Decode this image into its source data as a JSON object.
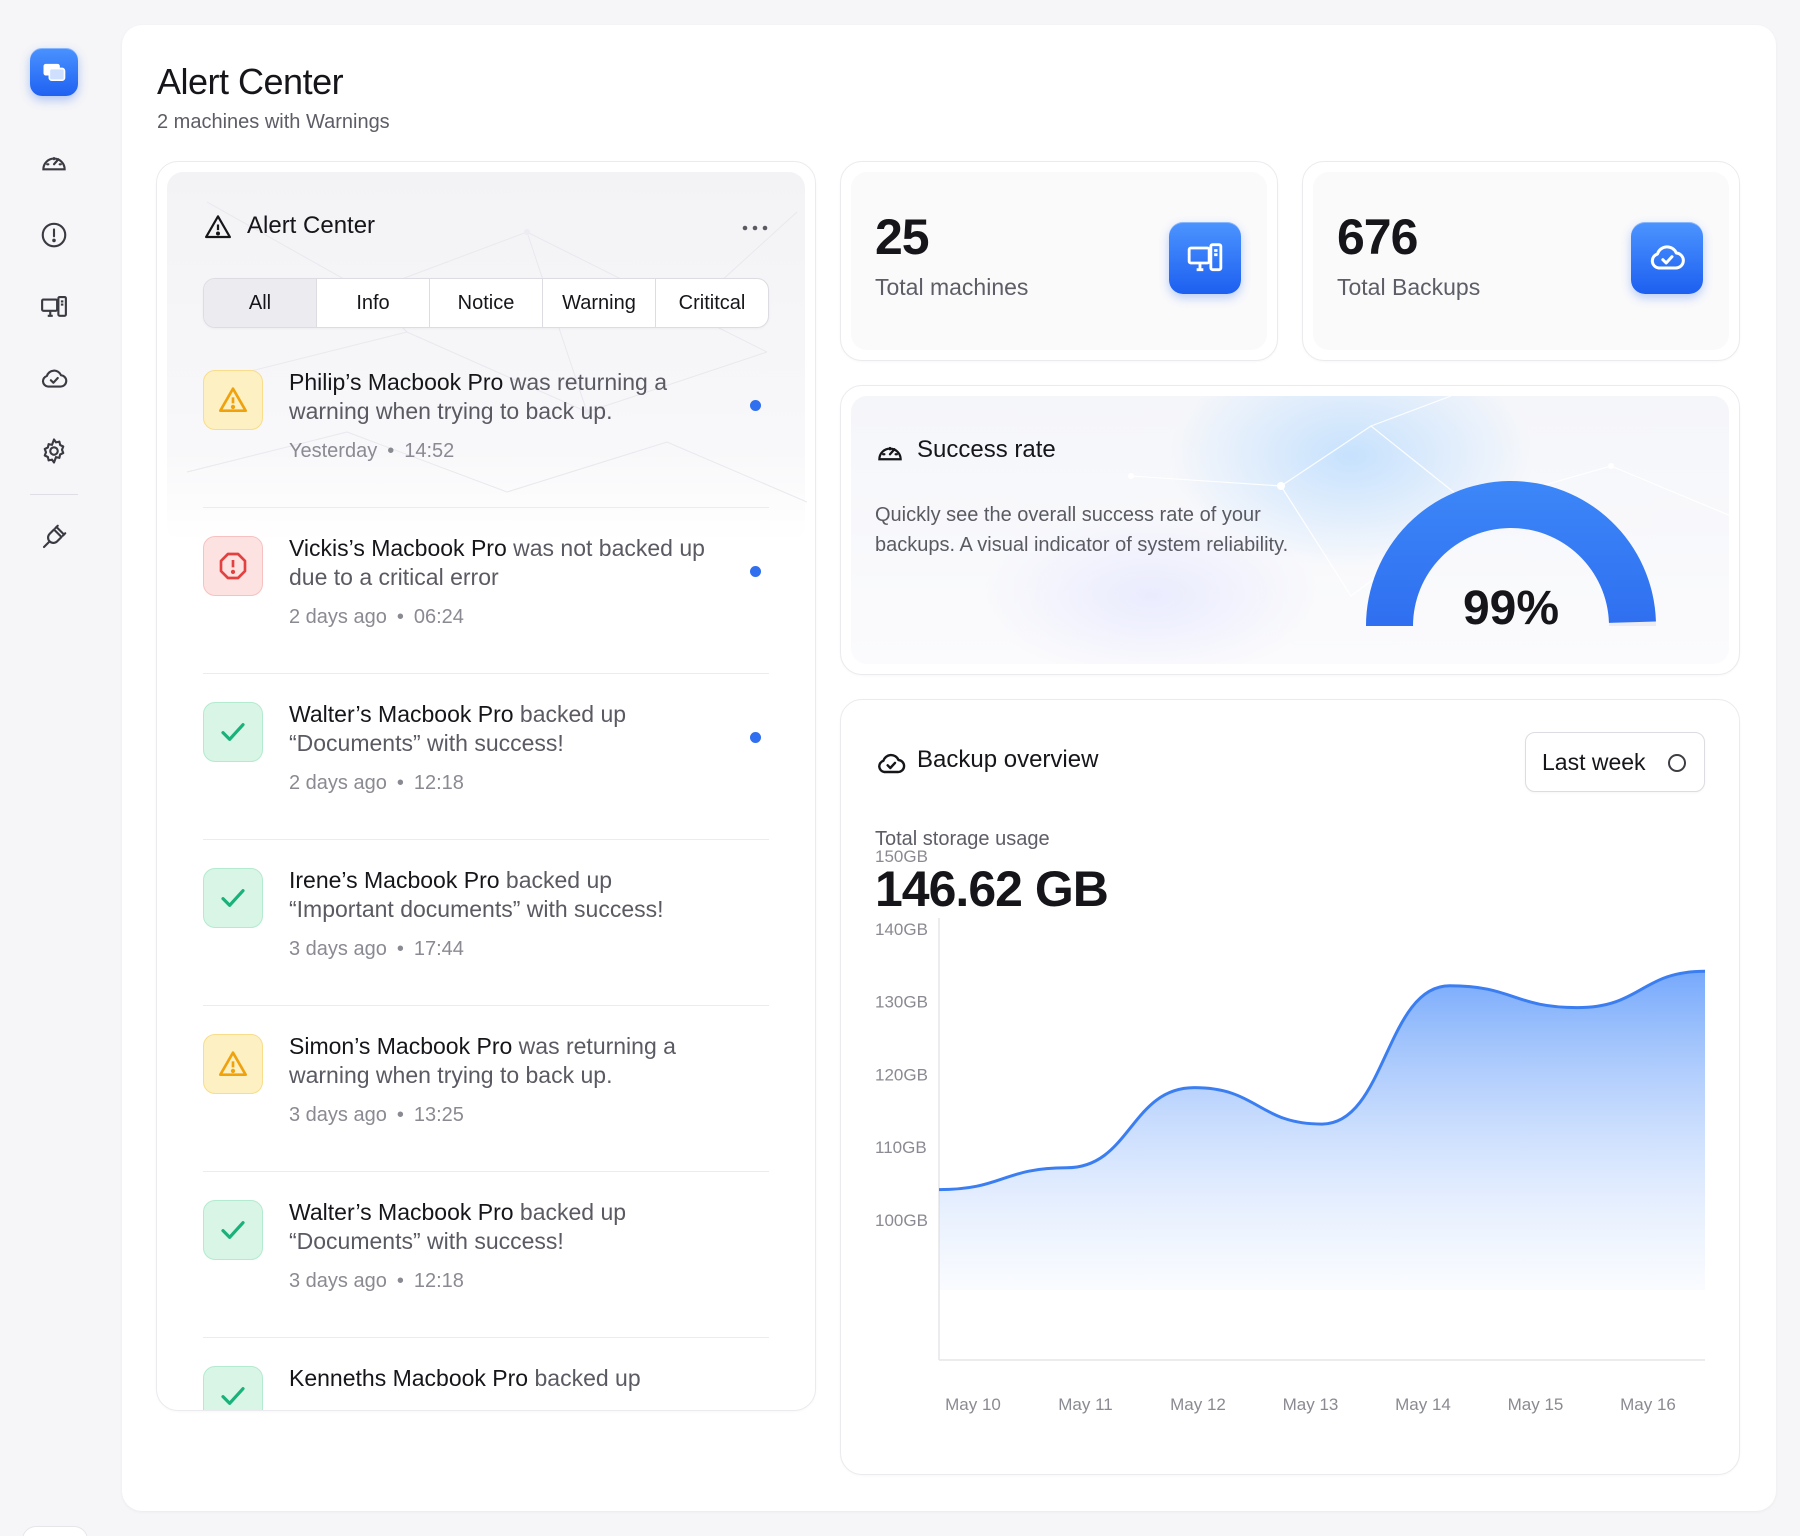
{
  "page": {
    "title": "Alert Center",
    "subtitle": "2 machines with Warnings"
  },
  "sidebar": {
    "items": [
      {
        "name": "dashboard",
        "icon": "gauge-icon"
      },
      {
        "name": "alerts",
        "icon": "alert-circle-icon"
      },
      {
        "name": "machines",
        "icon": "devices-icon"
      },
      {
        "name": "backups",
        "icon": "cloud-check-icon"
      },
      {
        "name": "settings",
        "icon": "gear-icon"
      },
      {
        "name": "integrations",
        "icon": "plug-icon"
      }
    ]
  },
  "alert_center": {
    "title": "Alert Center",
    "filters": [
      "All",
      "Info",
      "Notice",
      "Warning",
      "Crititcal"
    ],
    "selected_filter": "All",
    "items": [
      {
        "type": "warning",
        "who": "Philip’s Macbook Pro",
        "text": " was returning a warning when trying to back up.",
        "when": "Yesterday",
        "time": "14:52",
        "unread": true
      },
      {
        "type": "error",
        "who": "Vickis’s Macbook Pro",
        "text": " was not backed up due to a critical error",
        "when": "2 days ago",
        "time": "06:24",
        "unread": true
      },
      {
        "type": "success",
        "who": "Walter’s Macbook Pro",
        "text": " backed up “Documents” with success!",
        "when": "2 days ago",
        "time": "12:18",
        "unread": true
      },
      {
        "type": "success",
        "who": "Irene’s Macbook Pro",
        "text": " backed up “Important documents” with success!",
        "when": "3 days ago",
        "time": "17:44",
        "unread": false
      },
      {
        "type": "warning",
        "who": "Simon’s Macbook Pro",
        "text": " was returning a warning when trying to back up.",
        "when": "3 days ago",
        "time": "13:25",
        "unread": false
      },
      {
        "type": "success",
        "who": "Walter’s Macbook Pro",
        "text": " backed up “Documents” with success!",
        "when": "3 days ago",
        "time": "12:18",
        "unread": false
      },
      {
        "type": "success",
        "who": "Kenneths Macbook Pro",
        "text": " backed up",
        "when": "",
        "time": "",
        "unread": false
      }
    ]
  },
  "stats": {
    "machines": {
      "value": "25",
      "label": "Total machines",
      "icon": "devices-icon"
    },
    "backups": {
      "value": "676",
      "label": "Total Backups",
      "icon": "cloud-check-icon"
    }
  },
  "success_rate": {
    "title": "Success rate",
    "description": "Quickly see the overall success rate of your backups. A visual indicator of system reliability.",
    "value": 99,
    "value_label": "99%",
    "accent": "#3b82f6"
  },
  "backup_overview": {
    "title": "Backup overview",
    "range_label": "Last week",
    "storage_label": "Total storage usage",
    "storage_value": "146.62 GB"
  },
  "chart_data": {
    "type": "area",
    "x": [
      "May 10",
      "May 11",
      "May 12",
      "May 13",
      "May 14",
      "May 15",
      "May 16"
    ],
    "yticks": [
      "150GB",
      "140GB",
      "130GB",
      "120GB",
      "110GB",
      "100GB"
    ],
    "ylim": [
      100,
      150
    ],
    "series": [
      {
        "values": [
          105,
          108,
          119,
          114,
          133,
          130,
          135
        ]
      }
    ],
    "grid": false,
    "color": "#3b82f6"
  }
}
